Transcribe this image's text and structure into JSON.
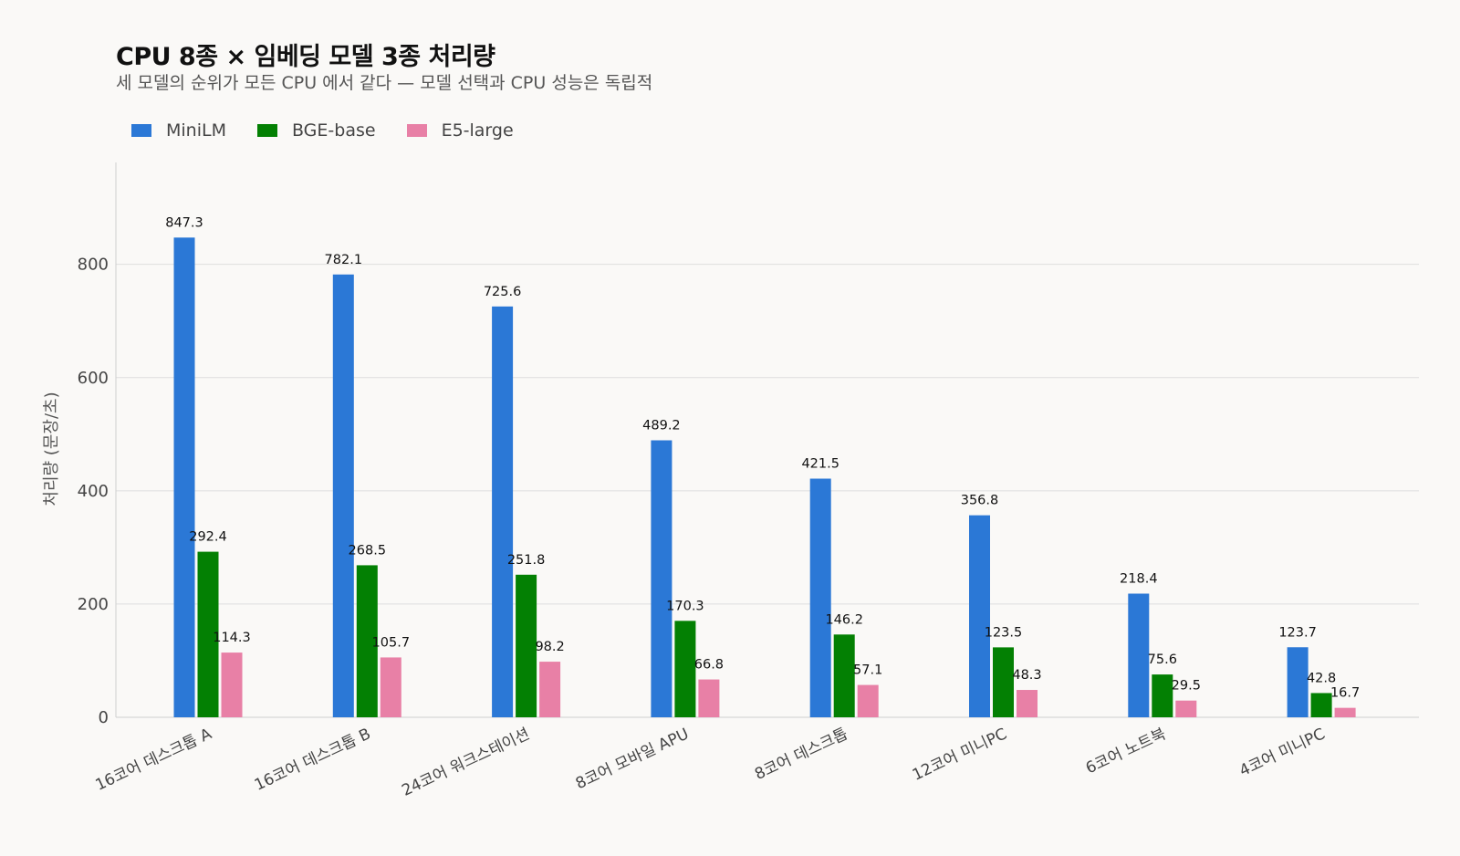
{
  "chart_data": {
    "type": "bar",
    "title": "CPU 8종 × 임베딩 모델 3종 처리량",
    "subtitle": "세 모델의 순위가 모든 CPU 에서 같다 — 모델 선택과 CPU 성능은 독립적",
    "xlabel": "",
    "ylabel": "처리량 (문장/초)",
    "ylim": [
      0,
      980
    ],
    "yticks": [
      0,
      200,
      400,
      600,
      800
    ],
    "grid": "horizontal",
    "legend_position": "top-left",
    "categories": [
      "16코어 데스크톱 A",
      "16코어 데스크톱 B",
      "24코어 워크스테이션",
      "8코어 모바일 APU",
      "8코어 데스크톱",
      "12코어 미니PC",
      "6코어 노트북",
      "4코어 미니PC"
    ],
    "series": [
      {
        "name": "MiniLM",
        "color": "#2b78d6",
        "values": [
          847.3,
          782.1,
          725.6,
          489.2,
          421.5,
          356.8,
          218.4,
          123.7
        ]
      },
      {
        "name": "BGE-base",
        "color": "#038003",
        "values": [
          292.4,
          268.5,
          251.8,
          170.3,
          146.2,
          123.5,
          75.6,
          42.8
        ]
      },
      {
        "name": "E5-large",
        "color": "#e880a6",
        "values": [
          114.3,
          105.7,
          98.2,
          66.8,
          57.1,
          48.3,
          29.5,
          16.7
        ]
      }
    ]
  }
}
